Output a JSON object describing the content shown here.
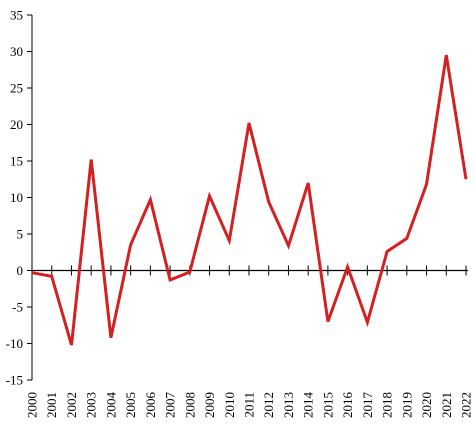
{
  "chart_data": {
    "type": "line",
    "title": "",
    "xlabel": "",
    "ylabel": "",
    "x": [
      "2000",
      "2001",
      "2002",
      "2003",
      "2004",
      "2005",
      "2006",
      "2007",
      "2008",
      "2009",
      "2010",
      "2011",
      "2012",
      "2013",
      "2014",
      "2015",
      "2016",
      "2017",
      "2018",
      "2019",
      "2020",
      "2021",
      "2022"
    ],
    "series": [
      {
        "values": [
          -0.3,
          -0.8,
          -10.2,
          15.2,
          -9.2,
          3.5,
          9.7,
          -1.3,
          -0.2,
          10.2,
          4.1,
          20.2,
          9.4,
          3.4,
          12.0,
          -7.0,
          0.5,
          -7.1,
          2.6,
          4.4,
          11.8,
          29.5,
          12.5
        ],
        "color": "#d42020"
      }
    ],
    "ylim": [
      -15,
      35
    ],
    "yticks": [
      35,
      30,
      25,
      20,
      15,
      10,
      5,
      0,
      -5,
      -10,
      -15
    ],
    "grid": false,
    "legend": "none"
  }
}
